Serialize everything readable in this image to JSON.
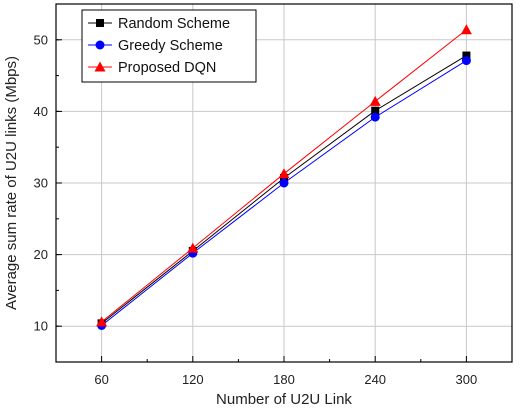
{
  "chart_data": {
    "type": "line",
    "xlabel": "Number of U2U Link",
    "ylabel": "Average sum rate of  U2U links (Mbps)",
    "x": [
      60,
      120,
      180,
      240,
      300
    ],
    "xlim": [
      30,
      330
    ],
    "ylim": [
      5,
      55
    ],
    "xticks": [
      60,
      120,
      180,
      240,
      300
    ],
    "yticks": [
      10,
      20,
      30,
      40,
      50
    ],
    "grid": true,
    "legend_position": "top-left",
    "series": [
      {
        "name": "Random Scheme",
        "values": [
          10.4,
          20.5,
          30.7,
          40.1,
          47.8
        ],
        "color": "#000000",
        "marker": "square"
      },
      {
        "name": "Greedy Scheme",
        "values": [
          10.1,
          20.2,
          30.0,
          39.2,
          47.1
        ],
        "color": "#0000ff",
        "marker": "circle"
      },
      {
        "name": "Proposed DQN",
        "values": [
          10.6,
          20.9,
          31.3,
          41.4,
          51.4
        ],
        "color": "#ff0000",
        "marker": "triangle"
      }
    ]
  }
}
